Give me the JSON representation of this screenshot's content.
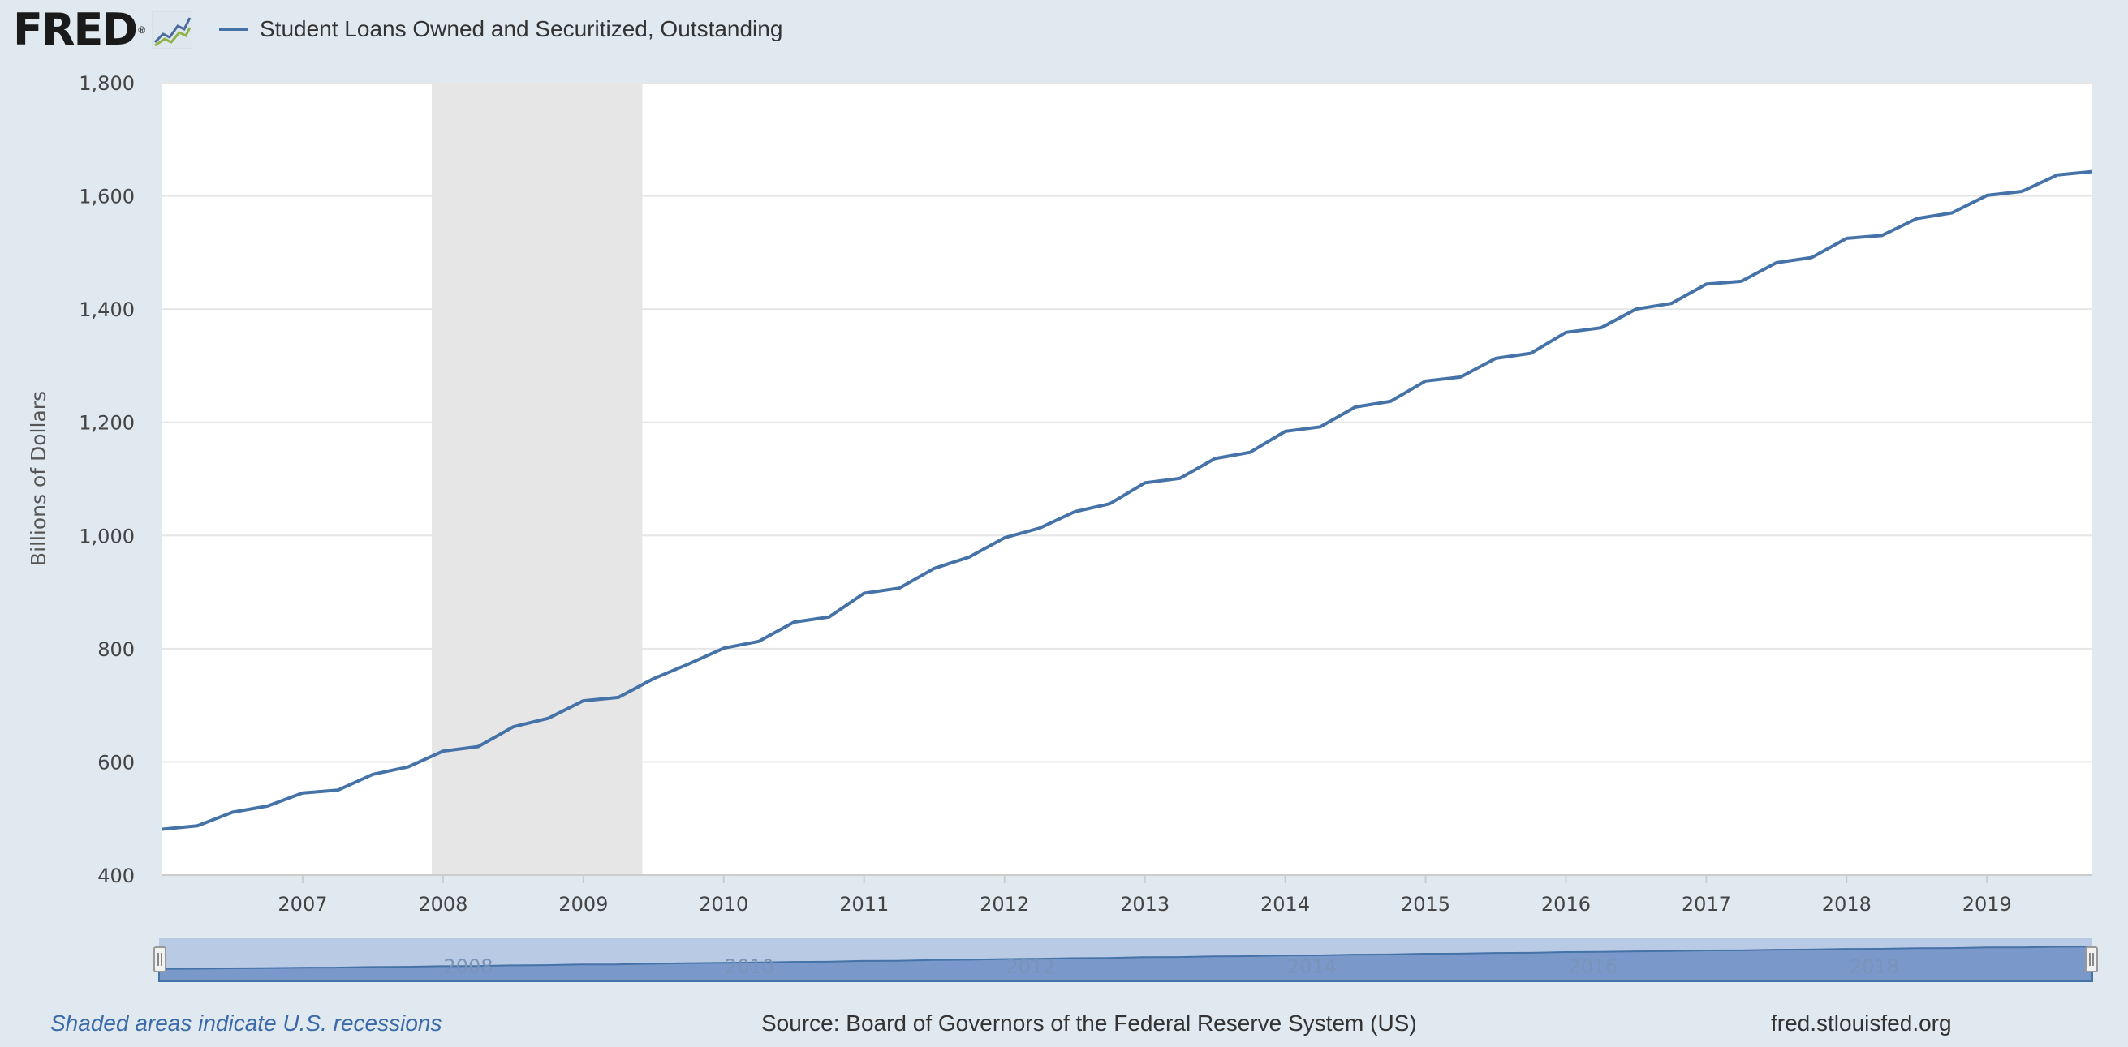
{
  "header": {
    "logo_text": "FRED",
    "logo_reg": "®",
    "logo_icon": "line-chart-icon"
  },
  "chart_data": {
    "type": "line",
    "ylabel": "Billions of Dollars",
    "ylim": [
      400,
      1800
    ],
    "yticks": [
      400,
      600,
      800,
      1000,
      1200,
      1400,
      1600,
      1800
    ],
    "ytick_labels": [
      "400",
      "600",
      "800",
      "1,000",
      "1,200",
      "1,400",
      "1,600",
      "1,800"
    ],
    "xlim": [
      2006.0,
      2019.75
    ],
    "xticks": [
      2007,
      2008,
      2009,
      2010,
      2011,
      2012,
      2013,
      2014,
      2015,
      2016,
      2017,
      2018,
      2019
    ],
    "xtick_labels": [
      "2007",
      "2008",
      "2009",
      "2010",
      "2011",
      "2012",
      "2013",
      "2014",
      "2015",
      "2016",
      "2017",
      "2018",
      "2019"
    ],
    "grid": true,
    "recessions": [
      {
        "start": 2007.92,
        "end": 2009.42
      }
    ],
    "series": [
      {
        "name": "Student Loans Owned and Securitized, Outstanding",
        "color": "#4572a7",
        "x": [
          2006.0,
          2006.25,
          2006.5,
          2006.75,
          2007.0,
          2007.25,
          2007.5,
          2007.75,
          2008.0,
          2008.25,
          2008.5,
          2008.75,
          2009.0,
          2009.25,
          2009.5,
          2009.75,
          2010.0,
          2010.25,
          2010.5,
          2010.75,
          2011.0,
          2011.25,
          2011.5,
          2011.75,
          2012.0,
          2012.25,
          2012.5,
          2012.75,
          2013.0,
          2013.25,
          2013.5,
          2013.75,
          2014.0,
          2014.25,
          2014.5,
          2014.75,
          2015.0,
          2015.25,
          2015.5,
          2015.75,
          2016.0,
          2016.25,
          2016.5,
          2016.75,
          2017.0,
          2017.25,
          2017.5,
          2017.75,
          2018.0,
          2018.25,
          2018.5,
          2018.75,
          2019.0,
          2019.25,
          2019.5,
          2019.75
        ],
        "values": [
          481,
          487,
          511,
          522,
          545,
          550,
          578,
          591,
          619,
          627,
          662,
          677,
          708,
          714,
          747,
          773,
          801,
          813,
          847,
          856,
          898,
          907,
          942,
          962,
          996,
          1013,
          1042,
          1056,
          1093,
          1101,
          1136,
          1147,
          1184,
          1192,
          1227,
          1237,
          1273,
          1280,
          1313,
          1322,
          1359,
          1367,
          1400,
          1410,
          1444,
          1449,
          1482,
          1491,
          1525,
          1530,
          1560,
          1570,
          1601,
          1608,
          1637,
          1643
        ]
      }
    ]
  },
  "navigator": {
    "labels": [
      "2008",
      "2010",
      "2012",
      "2014",
      "2016",
      "2018"
    ],
    "label_years": [
      2008,
      2010,
      2012,
      2014,
      2016,
      2018
    ],
    "left_handle_icon": "range-handle-left-icon",
    "right_handle_icon": "range-handle-right-icon"
  },
  "footer": {
    "recession_note": "Shaded areas indicate U.S. recessions",
    "source": "Source: Board of Governors of the Federal Reserve System (US)",
    "site": "fred.stlouisfed.org"
  },
  "colors": {
    "background": "#e1e9f0",
    "plot_background": "#ffffff",
    "line": "#4572a7",
    "recession": "#e6e6e6",
    "grid": "#e6e6e6",
    "navigator_mask": "#b8cae4",
    "navigator_fill": "#6e8fc4"
  }
}
